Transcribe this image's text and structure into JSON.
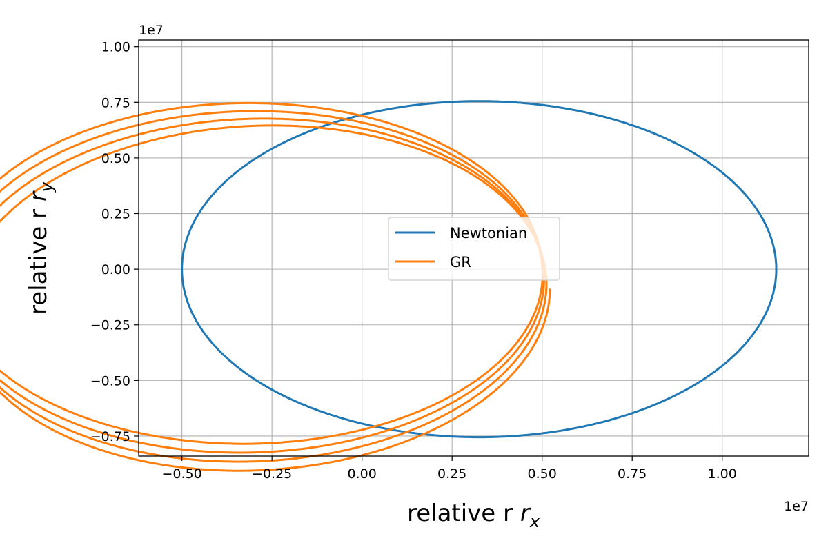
{
  "chart_data": {
    "type": "line",
    "xlabel": "relative r",
    "xlabel_sub": "x",
    "ylabel": "relative r",
    "ylabel_sub": "y",
    "x_offset_text": "1e7",
    "y_offset_text": "1e7",
    "xlim": [
      -0.62,
      1.24
    ],
    "ylim": [
      -0.84,
      1.03
    ],
    "xticks": [
      -0.5,
      -0.25,
      0.0,
      0.25,
      0.5,
      0.75,
      1.0
    ],
    "xtick_labels": [
      "−0.50",
      "−0.25",
      "0.00",
      "0.25",
      "0.50",
      "0.75",
      "1.00"
    ],
    "yticks": [
      -0.75,
      -0.5,
      -0.25,
      0.0,
      0.25,
      0.5,
      0.75,
      1.0
    ],
    "ytick_labels": [
      "−0.75",
      "−0.50",
      "−0.25",
      "0.00",
      "0.25",
      "0.50",
      "0.75",
      "1.00"
    ],
    "grid": true,
    "legend_position": "center",
    "series": [
      {
        "name": "Newtonian",
        "color": "#1f77b4",
        "orbit": {
          "center_x": 0.325,
          "center_y": 0.0,
          "semi_major": 0.825,
          "semi_minor": 0.755,
          "revolutions": 1
        }
      },
      {
        "name": "GR",
        "color": "#ff7f0e",
        "orbit": {
          "periapsis_start": 1.15,
          "apoapsis": 0.5,
          "precession_per_orbit_deg": 6.8,
          "revolutions": 3.9
        }
      }
    ]
  }
}
